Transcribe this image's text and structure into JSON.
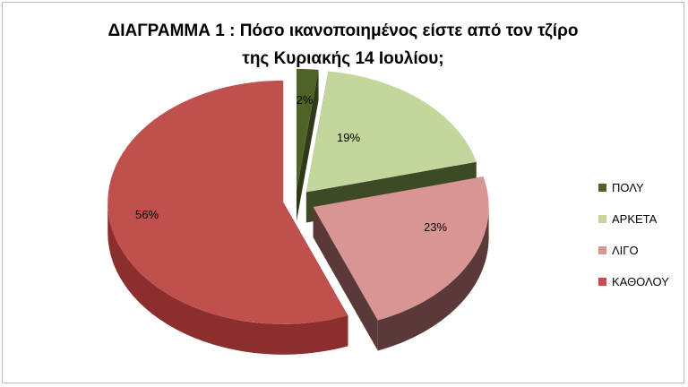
{
  "chart_data": {
    "type": "pie",
    "title_line1": "ΔΙΑΓΡΑΜΜΑ 1 : Πόσο ικανοποιημένος είστε από τον τζίρο",
    "title_line2": "της Κυριακής 14 Ιουλίου;",
    "slices": [
      {
        "label": "ΠΟΛΥ",
        "value": 2,
        "display": "2%",
        "color": "#4f6228",
        "side_color": "#2e3a17"
      },
      {
        "label": "ΑΡΚΕΤΑ",
        "value": 19,
        "display": "19%",
        "color": "#c3d69b",
        "side_color": "#3c4a26"
      },
      {
        "label": "ΛΙΓΟ",
        "value": 23,
        "display": "23%",
        "color": "#d99594",
        "side_color": "#5a3a39"
      },
      {
        "label": "ΚΑΘΟΛΟΥ",
        "value": 56,
        "display": "56%",
        "color": "#c0504d",
        "side_color": "#8b2e2c"
      }
    ],
    "legend_position": "right",
    "style": "3d-exploded-pie"
  }
}
